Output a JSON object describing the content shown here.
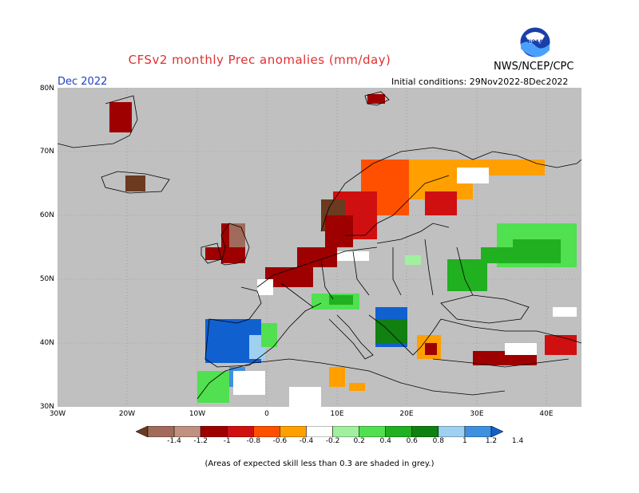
{
  "header": {
    "title": "CFSv2 monthly Prec anomalies (mm/day)",
    "title_color": "#e03030",
    "agency": "NWS/NCEP/CPC",
    "month": "Dec 2022",
    "month_color": "#2040c0",
    "initial_conditions": "Initial conditions: 29Nov2022-8Dec2022"
  },
  "logo": {
    "icon": "noaa-logo",
    "text": "NOAA"
  },
  "map": {
    "region": "Europe",
    "lat_labels": [
      "80N",
      "70N",
      "60N",
      "50N",
      "40N",
      "30N"
    ],
    "lon_labels": [
      "30W",
      "20W",
      "10W",
      "0",
      "10E",
      "20E",
      "30E",
      "40E"
    ],
    "background": "#c0c0c0",
    "ocean_color": "#c0c0c0"
  },
  "colorbar": {
    "labels": [
      "-1.4",
      "-1.2",
      "-1",
      "-0.8",
      "-0.6",
      "-0.4",
      "-0.2",
      "0.2",
      "0.4",
      "0.6",
      "0.8",
      "1",
      "1.2",
      "1.4"
    ],
    "colors": [
      "#6b3a1f",
      "#a06b5a",
      "#c09080",
      "#9e0000",
      "#d01010",
      "#ff5000",
      "#ffa000",
      "#ffffff",
      "#a0f0a0",
      "#50e050",
      "#20b020",
      "#108010",
      "#a0d0f0",
      "#4090e0",
      "#1060d0"
    ]
  },
  "footnote": "(Areas of expected skill less than 0.3 are shaded in grey.)"
}
